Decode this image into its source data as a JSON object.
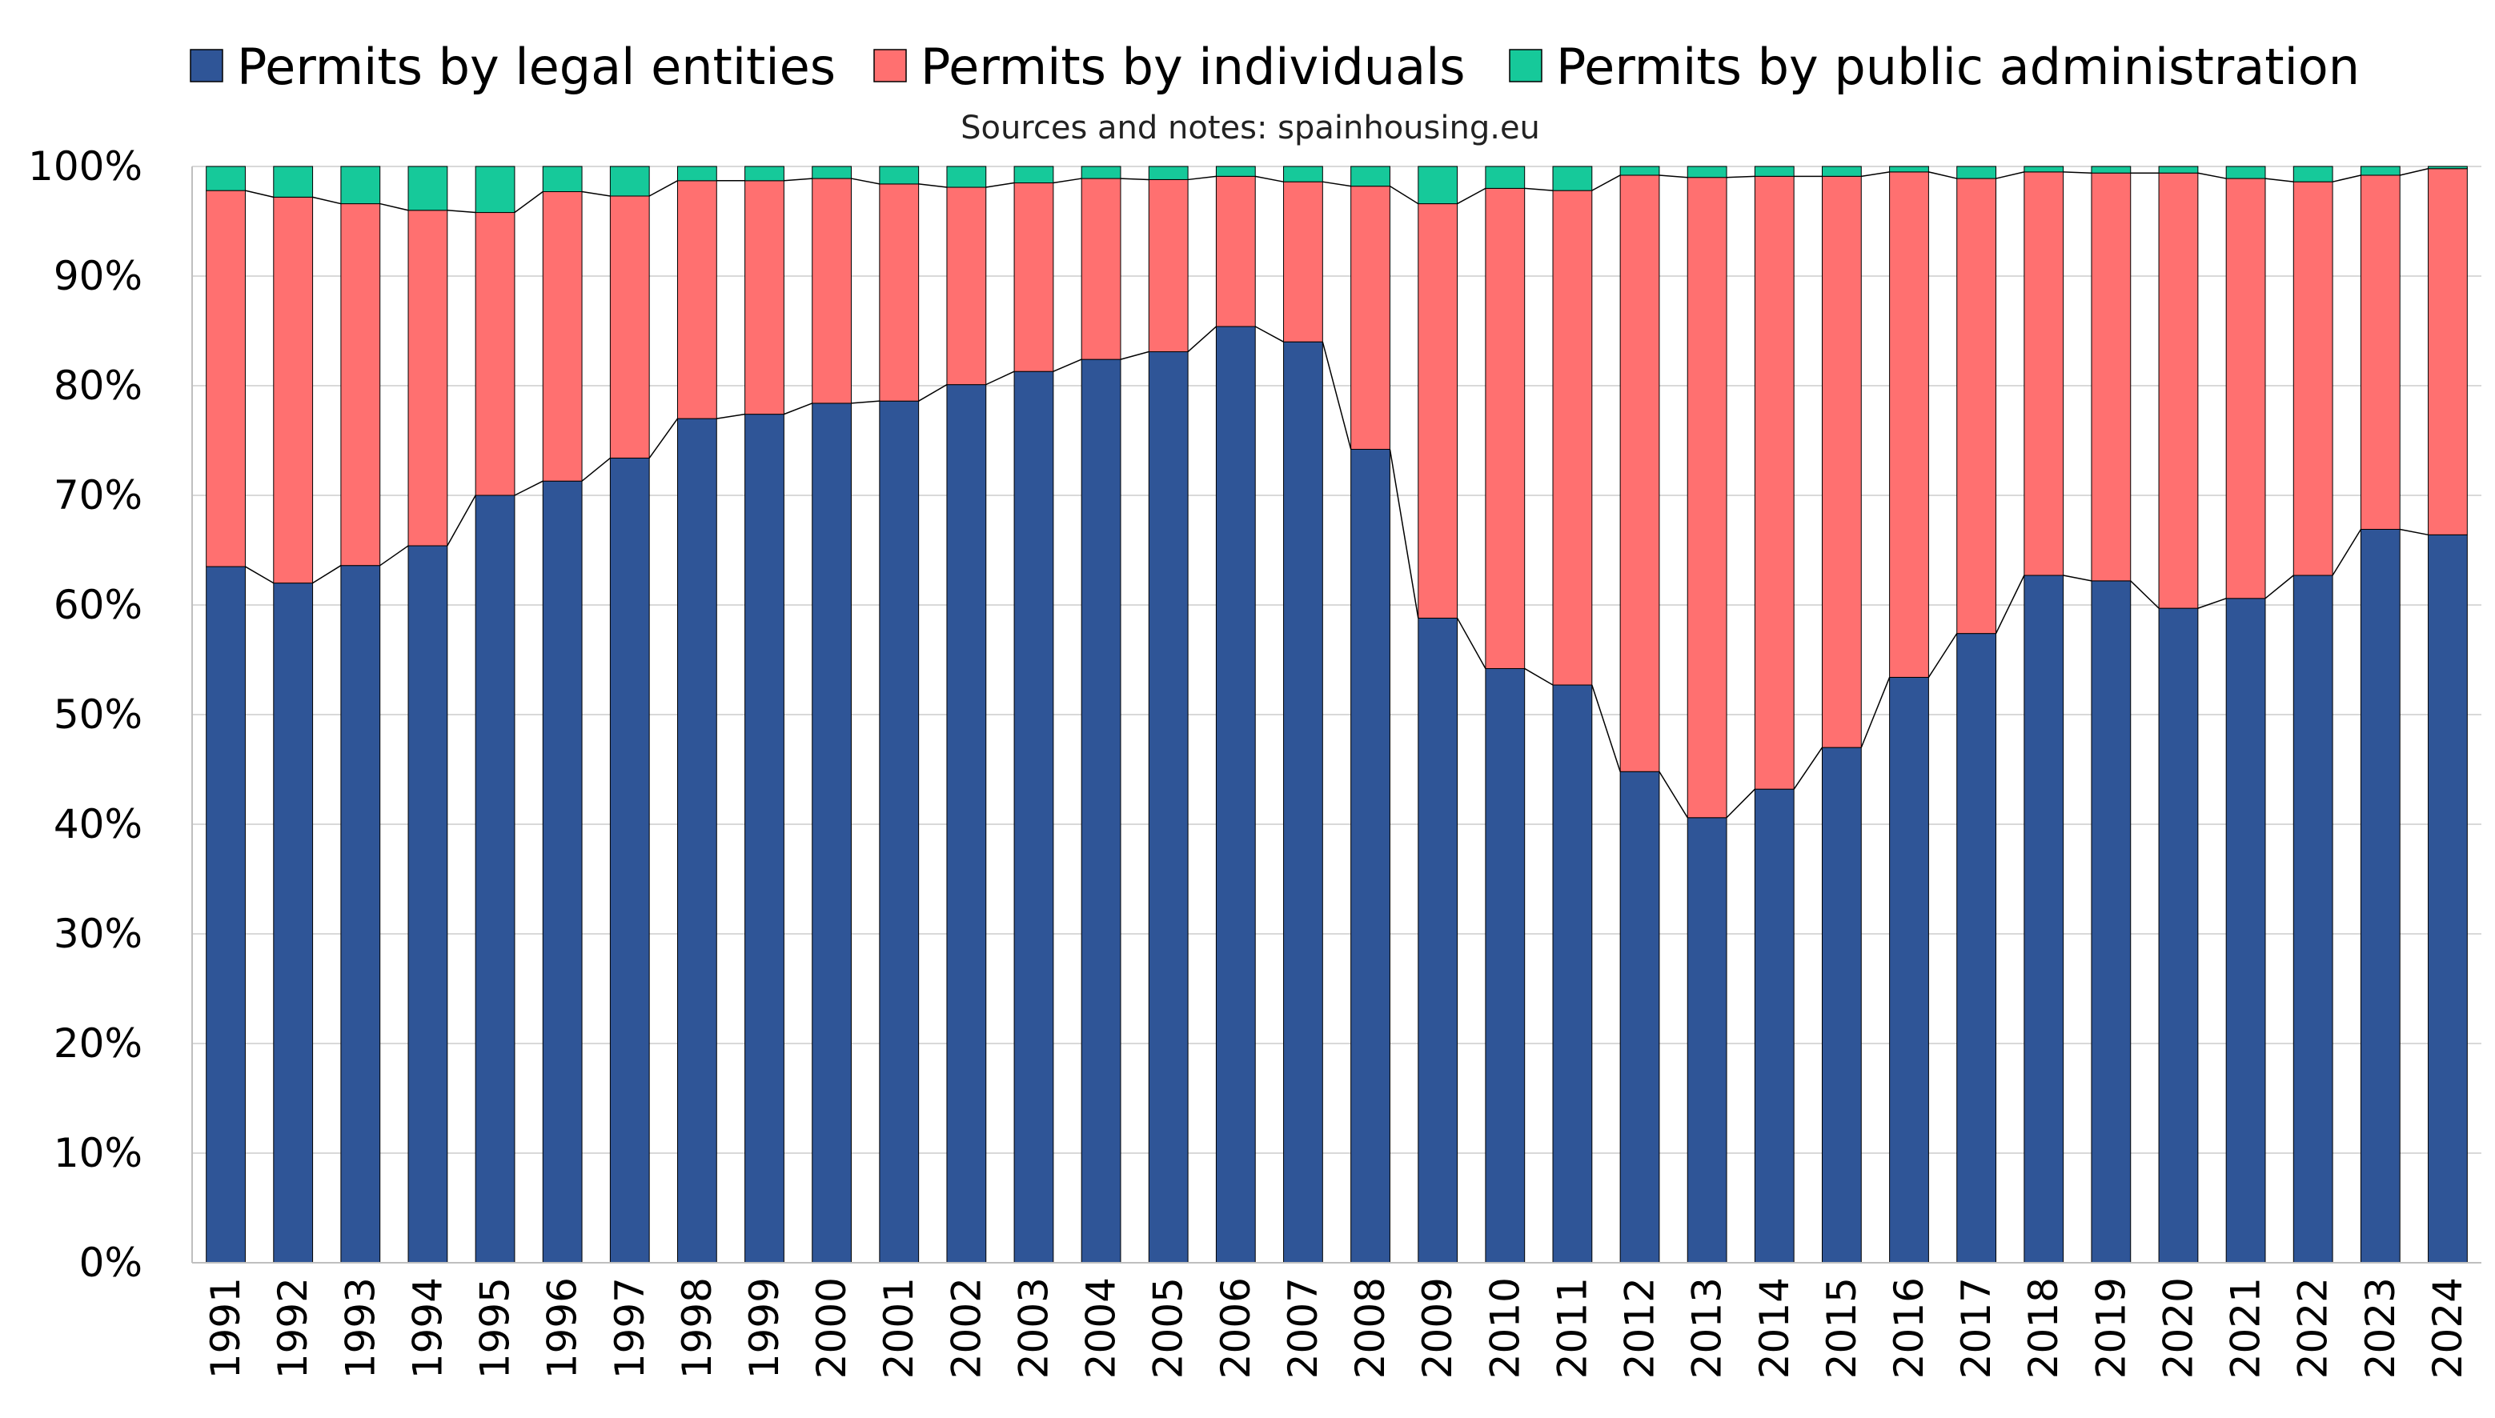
{
  "chart_data": {
    "type": "bar",
    "stacked": true,
    "subtitle": "Sources and notes: spainhousing.eu",
    "categories": [
      "1991",
      "1992",
      "1993",
      "1994",
      "1995",
      "1996",
      "1997",
      "1998",
      "1999",
      "2000",
      "2001",
      "2002",
      "2003",
      "2004",
      "2005",
      "2006",
      "2007",
      "2008",
      "2009",
      "2010",
      "2011",
      "2012",
      "2013",
      "2014",
      "2015",
      "2016",
      "2017",
      "2018",
      "2019",
      "2020",
      "2021",
      "2022",
      "2023",
      "2024"
    ],
    "series": [
      {
        "name": "Permits by legal entities",
        "color": "#2F5597",
        "values": [
          63.5,
          62.0,
          63.6,
          65.4,
          70.0,
          71.3,
          73.4,
          77.0,
          77.4,
          78.4,
          78.6,
          80.1,
          81.3,
          82.4,
          83.1,
          85.4,
          84.0,
          74.2,
          58.8,
          54.2,
          52.7,
          44.8,
          40.6,
          43.2,
          47.0,
          53.4,
          57.4,
          62.7,
          62.2,
          59.7,
          60.6,
          62.7,
          66.9,
          66.4
        ]
      },
      {
        "name": "Permits by individuals",
        "color": "#FF7070",
        "values": [
          34.3,
          35.2,
          33.0,
          30.6,
          25.8,
          26.4,
          23.9,
          21.7,
          21.3,
          20.5,
          19.8,
          18.0,
          17.2,
          16.5,
          15.7,
          13.7,
          14.6,
          24.0,
          37.8,
          43.8,
          45.1,
          54.4,
          58.4,
          55.9,
          52.1,
          46.1,
          41.5,
          36.8,
          37.2,
          39.7,
          38.3,
          35.9,
          32.3,
          33.4
        ]
      },
      {
        "name": "Permits by public administration",
        "color": "#16C99A",
        "values": [
          2.2,
          2.8,
          3.4,
          4.0,
          4.2,
          2.3,
          2.7,
          1.3,
          1.3,
          1.1,
          1.6,
          1.9,
          1.5,
          1.1,
          1.2,
          0.9,
          1.4,
          1.8,
          3.4,
          2.0,
          2.2,
          0.8,
          1.0,
          0.9,
          0.9,
          0.5,
          1.1,
          0.5,
          0.6,
          0.6,
          1.1,
          1.4,
          0.8,
          0.2
        ]
      }
    ],
    "y_ticks": [
      "0%",
      "10%",
      "20%",
      "30%",
      "40%",
      "50%",
      "60%",
      "70%",
      "80%",
      "90%",
      "100%"
    ],
    "ylim": [
      0,
      100
    ],
    "grid": true,
    "legend_position": "top",
    "series_lines": true
  }
}
